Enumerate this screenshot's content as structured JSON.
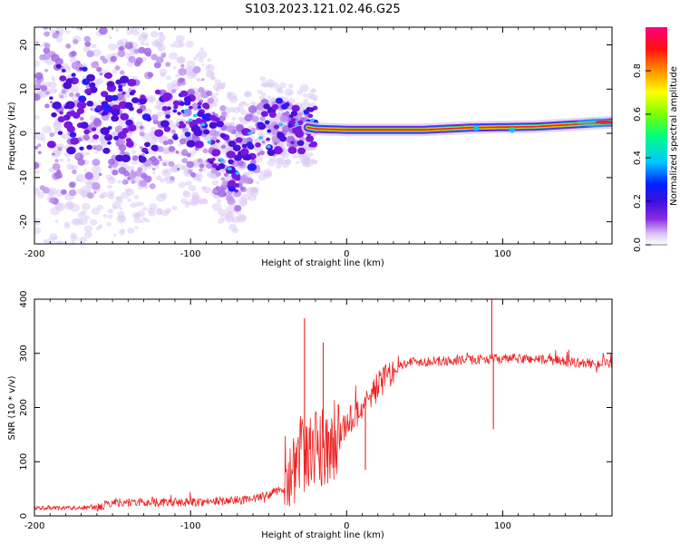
{
  "title": "S103.2023.121.02.46.G25",
  "chart_data": [
    {
      "type": "heatmap",
      "xlabel": "Height of straight line (km)",
      "ylabel": "Frequency (Hz)",
      "xlim": [
        -200,
        170
      ],
      "ylim": [
        -25,
        24
      ],
      "xticks": [
        -200,
        -100,
        0,
        100
      ],
      "yticks": [
        20,
        10,
        0,
        -10,
        -20
      ],
      "colorbar": {
        "label": "Normalized spectral amplitude",
        "range": [
          0,
          1
        ],
        "ticks": [
          "0.0",
          "0.2",
          "0.4",
          "0.6",
          "0.8"
        ]
      },
      "ridge": {
        "description_points": [
          {
            "x": -200,
            "y": 8
          },
          {
            "x": -150,
            "y": 4
          },
          {
            "x": -110,
            "y": 3
          },
          {
            "x": -95,
            "y": 3
          },
          {
            "x": -80,
            "y": -4
          },
          {
            "x": -70,
            "y": -8
          },
          {
            "x": -55,
            "y": 1
          },
          {
            "x": -35,
            "y": 2
          },
          {
            "x": -20,
            "y": 1
          },
          {
            "x": 0,
            "y": 0.8
          },
          {
            "x": 50,
            "y": 0.8
          },
          {
            "x": 80,
            "y": 1.3
          },
          {
            "x": 120,
            "y": 1.5
          },
          {
            "x": 170,
            "y": 2.5
          }
        ]
      },
      "grid": false,
      "colors": {
        "colormap": [
          "#ffffff",
          "#f0e6fb",
          "#c9a7f2",
          "#8a2be2",
          "#4b0bd9",
          "#0022ff",
          "#00c8ff",
          "#00ff80",
          "#b4ff00",
          "#ffff00",
          "#ff8000",
          "#ff0000",
          "#ff0080"
        ]
      }
    },
    {
      "type": "line",
      "xlabel": "Height of straight line (km)",
      "ylabel": "SNR (10 * v/v)",
      "xlim": [
        -200,
        170
      ],
      "ylim": [
        0,
        400
      ],
      "xticks": [
        -200,
        -100,
        0,
        100
      ],
      "yticks": [
        0,
        100,
        200,
        300,
        400
      ],
      "grid": false,
      "color": "#ee2222",
      "series": [
        {
          "trend_points": [
            {
              "x": -200,
              "y": 15
            },
            {
              "x": -160,
              "y": 15
            },
            {
              "x": -150,
              "y": 25
            },
            {
              "x": -100,
              "y": 25
            },
            {
              "x": -60,
              "y": 30
            },
            {
              "x": -40,
              "y": 50
            },
            {
              "x": -30,
              "y": 100
            },
            {
              "x": -20,
              "y": 130
            },
            {
              "x": -10,
              "y": 120
            },
            {
              "x": 0,
              "y": 170
            },
            {
              "x": 10,
              "y": 200
            },
            {
              "x": 20,
              "y": 240
            },
            {
              "x": 30,
              "y": 270
            },
            {
              "x": 40,
              "y": 285
            },
            {
              "x": 60,
              "y": 285
            },
            {
              "x": 90,
              "y": 290
            },
            {
              "x": 120,
              "y": 290
            },
            {
              "x": 150,
              "y": 282
            },
            {
              "x": 170,
              "y": 280
            }
          ],
          "spikes": [
            {
              "x": -27,
              "y": 365
            },
            {
              "x": -15,
              "y": 320
            },
            {
              "x": 93,
              "y": 400
            },
            {
              "x": 94,
              "y": 160
            },
            {
              "x": 12,
              "y": 85
            }
          ]
        }
      ]
    }
  ]
}
